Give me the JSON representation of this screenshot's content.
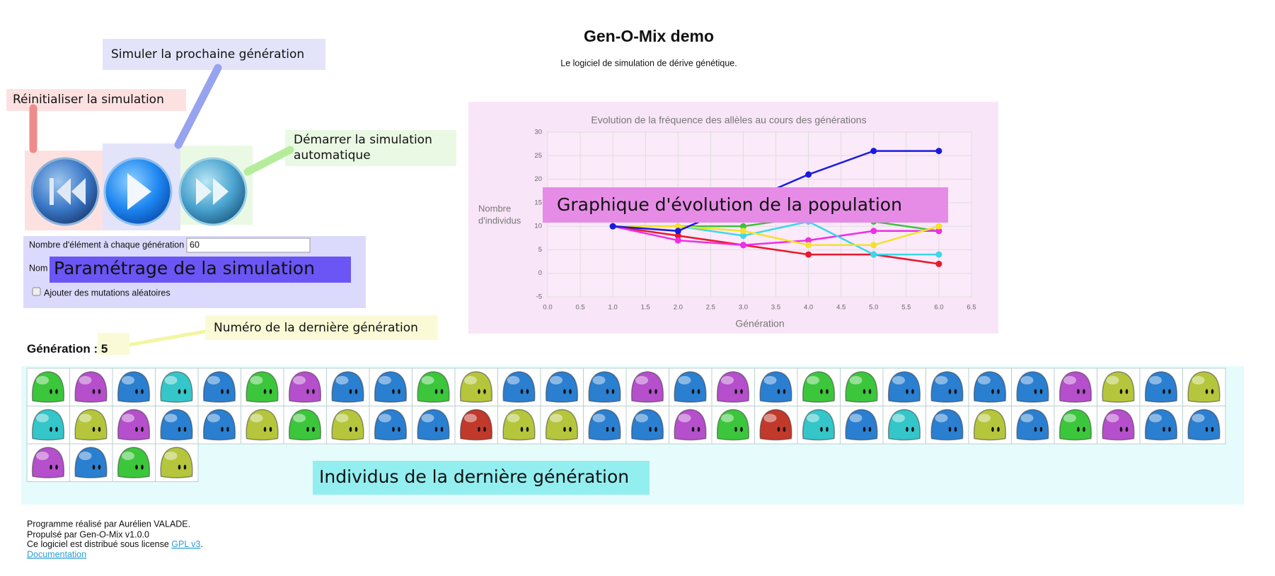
{
  "header": {
    "title": "Gen-O-Mix demo",
    "subtitle": "Le logiciel de simulation de dérive génétique."
  },
  "annotations": {
    "next": "Simuler la prochaine génération",
    "reset": "Réinitialiser la simulation",
    "auto": [
      "Démarrer la simulation",
      "automatique"
    ],
    "params": "Paramétrage de la simulation",
    "generation_number": "Numéro de la dernière génération",
    "chart": "Graphique d'évolution de la population",
    "individuals": "Individus de la dernière génération"
  },
  "form": {
    "count_label": "Nombre d'élément à chaque génération :",
    "count_value": 60,
    "second_label": "Nom",
    "mutation_label": "Ajouter des mutations aléatoires"
  },
  "generation": {
    "label": "Génération :",
    "value": 5
  },
  "chart_data": {
    "type": "line",
    "title": "Evolution de la fréquence des allèles au cours des générations",
    "x_label": "Génération",
    "y_label": [
      "Nombre",
      "d'individus"
    ],
    "x": [
      1,
      2,
      3,
      4,
      5,
      6
    ],
    "series": [
      {
        "color": "#3fbf3f",
        "values": [
          10,
          10,
          10,
          12,
          11,
          9
        ]
      },
      {
        "color": "#e8192c",
        "values": [
          10,
          8,
          6,
          4,
          4,
          2
        ]
      },
      {
        "color": "#ee2ee8",
        "values": [
          10,
          7,
          6,
          7,
          9,
          9
        ]
      },
      {
        "color": "#3dd6ec",
        "values": [
          10,
          10,
          8,
          11,
          4,
          4
        ]
      },
      {
        "color": "#f3e22a",
        "values": [
          10,
          10,
          9,
          6,
          6,
          10
        ]
      },
      {
        "color": "#1a1adf",
        "values": [
          10,
          9,
          15,
          21,
          26,
          26
        ]
      }
    ],
    "xlim": [
      0,
      6.5
    ],
    "ylim": [
      -5,
      30
    ],
    "xticks": [
      {
        "value": 0,
        "label": "0.0"
      },
      0.5,
      {
        "value": 1,
        "label": "1.0"
      },
      1.5,
      {
        "value": 2,
        "label": "2.0"
      },
      2.5,
      {
        "value": 3,
        "label": "3.0"
      },
      3.5,
      {
        "value": 4,
        "label": "4.0"
      },
      4.5,
      {
        "value": 5,
        "label": "5.0"
      },
      5.5,
      {
        "value": 6,
        "label": "6.0"
      },
      6.5
    ],
    "yticks": [
      -5,
      0,
      5,
      10,
      15,
      20,
      25,
      30
    ],
    "grid": true
  },
  "individuals": {
    "colors": {
      "green": "#3cc63c",
      "magenta": "#b54fcb",
      "blue": "#2a7fd0",
      "cyan": "#34c6c9",
      "yellow": "#b5c63c",
      "red": "#c0392b"
    },
    "items": [
      "green",
      "magenta",
      "blue",
      "cyan",
      "blue",
      "green",
      "magenta",
      "blue",
      "blue",
      "green",
      "yellow",
      "blue",
      "blue",
      "blue",
      "magenta",
      "blue",
      "magenta",
      "blue",
      "green",
      "green",
      "blue",
      "blue",
      "blue",
      "blue",
      "magenta",
      "yellow",
      "blue",
      "yellow",
      "cyan",
      "yellow",
      "magenta",
      "blue",
      "blue",
      "yellow",
      "green",
      "yellow",
      "blue",
      "blue",
      "red",
      "yellow",
      "yellow",
      "blue",
      "blue",
      "magenta",
      "green",
      "red",
      "cyan",
      "blue",
      "cyan",
      "blue",
      "yellow",
      "blue",
      "green",
      "magenta",
      "blue",
      "blue",
      "magenta",
      "blue",
      "green",
      "yellow"
    ]
  },
  "footer": {
    "author": "Programme réalisé par Aurélien VALADE.",
    "powered": "Propulsé par Gen-O-Mix v1.0.0",
    "license_prefix": "Ce logiciel est distribué sous license ",
    "license_link": "GPL v3",
    "license_suffix": ".",
    "documentation": "Documentation"
  }
}
